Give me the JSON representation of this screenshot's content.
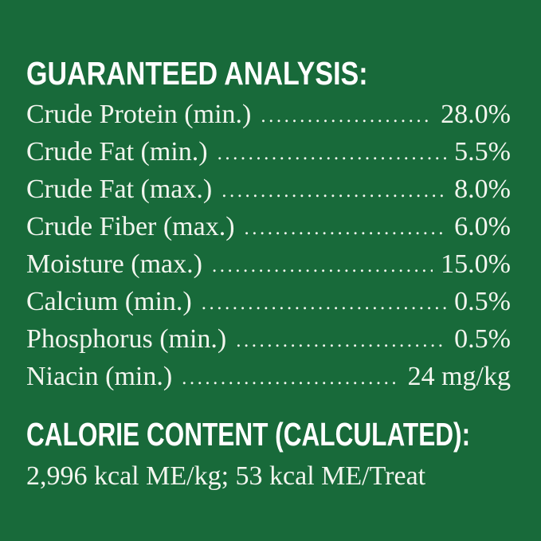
{
  "colors": {
    "background": "#186a3a",
    "heading_text": "#ffffff",
    "body_text": "#f2f5ee"
  },
  "guaranteed_analysis": {
    "title": "GUARANTEED ANALYSIS:",
    "rows": [
      {
        "label": "Crude Protein (min.)",
        "value": "28.0%"
      },
      {
        "label": "Crude Fat (min.)",
        "value": "5.5%"
      },
      {
        "label": "Crude Fat (max.)",
        "value": "8.0%"
      },
      {
        "label": "Crude Fiber (max.)",
        "value": "6.0%"
      },
      {
        "label": "Moisture (max.)",
        "value": "15.0%"
      },
      {
        "label": "Calcium (min.)",
        "value": "0.5%"
      },
      {
        "label": "Phosphorus (min.)",
        "value": "0.5%"
      },
      {
        "label": "Niacin (min.)",
        "value": "24 mg/kg"
      }
    ]
  },
  "calorie_content": {
    "title": "CALORIE CONTENT (CALCULATED):",
    "text": "2,996 kcal ME/kg; 53 kcal ME/Treat"
  }
}
